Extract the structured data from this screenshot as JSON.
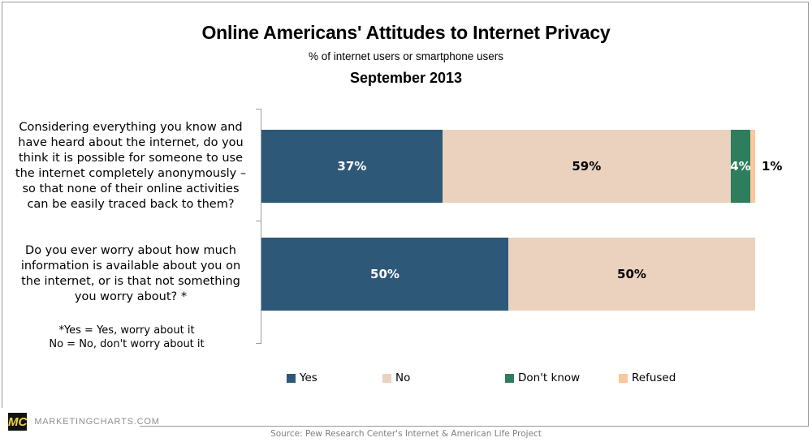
{
  "header": {
    "title": "Online Americans' Attitudes to Internet Privacy",
    "subtitle": "% of internet users or smartphone users",
    "period": "September 2013"
  },
  "chart_data": {
    "type": "bar",
    "orientation": "horizontal",
    "stacked": true,
    "unit": "%",
    "xlim": [
      0,
      100
    ],
    "grid": false,
    "legend_position": "bottom",
    "title": "Online Americans' Attitudes to Internet Privacy",
    "subtitle": "% of internet users or smartphone users",
    "period": "September 2013",
    "categories": [
      "Considering everything you know and have heard about the internet, do you think it is possible for someone to use the internet completely anonymously – so that none of their online activities can be easily traced back to them?",
      "Do you ever worry about how much information is available about you on the internet, or is that not something you worry about? *"
    ],
    "series": [
      {
        "name": "Yes",
        "color": "#2E5878",
        "values": [
          37,
          50
        ]
      },
      {
        "name": "No",
        "color": "#EAD2BF",
        "values": [
          59,
          50
        ]
      },
      {
        "name": "Don't know",
        "color": "#2E7D5C",
        "values": [
          4,
          0
        ]
      },
      {
        "name": "Refused",
        "color": "#FBC79B",
        "values": [
          1,
          0
        ]
      }
    ]
  },
  "rows": [
    {
      "question_lines": [
        "Considering everything you know and",
        "have heard about the internet, do you",
        "think it is possible for someone to use",
        "the internet completely anonymously –",
        "so that none of their online activities",
        "can be easily traced back to them?"
      ],
      "segments": [
        {
          "series": "Yes",
          "value": 37,
          "label": "37%",
          "label_color": "#FFFFFF",
          "label_inside": true
        },
        {
          "series": "No",
          "value": 59,
          "label": "59%",
          "label_color": "#000000",
          "label_inside": true
        },
        {
          "series": "Don't know",
          "value": 4,
          "label": "4%",
          "label_color": "#FFFFFF",
          "label_inside": true
        },
        {
          "series": "Refused",
          "value": 1,
          "label": "",
          "label_color": "#000000",
          "label_inside": false
        }
      ],
      "outside_label": "1%"
    },
    {
      "question_lines": [
        "Do you ever worry about how much",
        "information is available about you on",
        "the internet, or is that not something",
        "you worry about? *"
      ],
      "footnote_lines": [
        "*Yes = Yes, worry about it",
        "No = No, don't worry about it"
      ],
      "segments": [
        {
          "series": "Yes",
          "value": 50,
          "label": "50%",
          "label_color": "#FFFFFF",
          "label_inside": true
        },
        {
          "series": "No",
          "value": 50,
          "label": "50%",
          "label_color": "#000000",
          "label_inside": true
        }
      ]
    }
  ],
  "legend": {
    "items": [
      {
        "label": "Yes",
        "color": "#2E5878"
      },
      {
        "label": "No",
        "color": "#EAD2BF"
      },
      {
        "label": "Don't know",
        "color": "#2E7D5C"
      },
      {
        "label": "Refused",
        "color": "#FBC79B"
      }
    ]
  },
  "footer": {
    "logo_text": "MC",
    "brand": "MARKETINGCHARTS.COM",
    "source": "Source: Pew Research Center's Internet & American Life Project"
  }
}
